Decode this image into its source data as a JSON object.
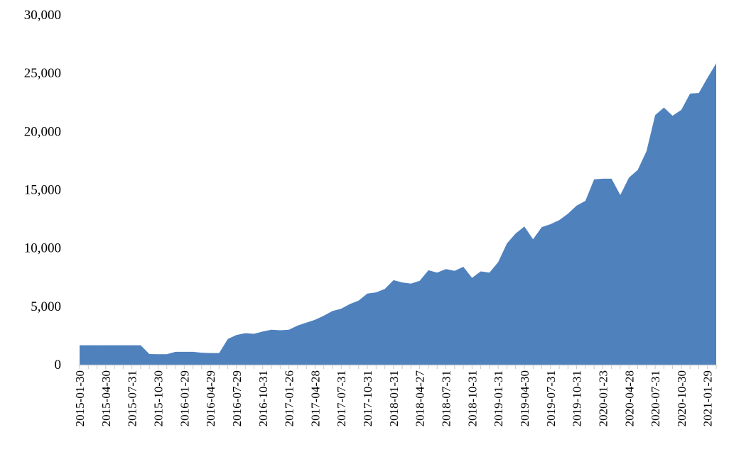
{
  "chart_data": {
    "type": "area",
    "title": "",
    "xlabel": "",
    "ylabel": "",
    "ylim": [
      0,
      30000
    ],
    "yticks": [
      "0",
      "5,000",
      "10,000",
      "15,000",
      "20,000",
      "25,000",
      "30,000"
    ],
    "ytick_values": [
      0,
      5000,
      10000,
      15000,
      20000,
      25000,
      30000
    ],
    "grid": false,
    "legend": "none",
    "color": "#4f81bd",
    "x": [
      "2015-01",
      "2015-02",
      "2015-03",
      "2015-04",
      "2015-05",
      "2015-06",
      "2015-07",
      "2015-08",
      "2015-09",
      "2015-10",
      "2015-11",
      "2015-12",
      "2016-01",
      "2016-02",
      "2016-03",
      "2016-04",
      "2016-05",
      "2016-06",
      "2016-07",
      "2016-08",
      "2016-09",
      "2016-10",
      "2016-11",
      "2016-12",
      "2017-01",
      "2017-02",
      "2017-03",
      "2017-04",
      "2017-05",
      "2017-06",
      "2017-07",
      "2017-08",
      "2017-09",
      "2017-10",
      "2017-11",
      "2017-12",
      "2018-01",
      "2018-02",
      "2018-03",
      "2018-04",
      "2018-05",
      "2018-06",
      "2018-07",
      "2018-08",
      "2018-09",
      "2018-10",
      "2018-11",
      "2018-12",
      "2019-01",
      "2019-02",
      "2019-03",
      "2019-04",
      "2019-05",
      "2019-06",
      "2019-07",
      "2019-08",
      "2019-09",
      "2019-10",
      "2019-11",
      "2019-12",
      "2020-01",
      "2020-02",
      "2020-03",
      "2020-04",
      "2020-05",
      "2020-06",
      "2020-07",
      "2020-08",
      "2020-09",
      "2020-10",
      "2020-11",
      "2020-12",
      "2021-01",
      "2021-02"
    ],
    "values": [
      1670,
      1670,
      1670,
      1670,
      1670,
      1670,
      1670,
      1670,
      910,
      900,
      900,
      1100,
      1100,
      1100,
      1030,
      1000,
      1000,
      2200,
      2550,
      2700,
      2650,
      2850,
      3000,
      2950,
      3000,
      3350,
      3600,
      3850,
      4200,
      4600,
      4800,
      5200,
      5500,
      6100,
      6200,
      6500,
      7250,
      7050,
      6950,
      7200,
      8100,
      7900,
      8200,
      8050,
      8400,
      7450,
      8000,
      7900,
      8800,
      10400,
      11250,
      11850,
      10750,
      11800,
      12050,
      12400,
      12950,
      13650,
      14050,
      15900,
      15950,
      15950,
      14550,
      16050,
      16700,
      18300,
      21400,
      22050,
      21350,
      21850,
      23250,
      23300,
      24600,
      25850
    ],
    "xtick_labels": [
      "2015-01-30",
      "2015-04-30",
      "2015-07-31",
      "2015-10-30",
      "2016-01-29",
      "2016-04-29",
      "2016-07-29",
      "2016-10-31",
      "2017-01-26",
      "2017-04-28",
      "2017-07-31",
      "2017-10-31",
      "2018-01-31",
      "2018-04-27",
      "2018-07-31",
      "2018-10-31",
      "2019-01-31",
      "2019-04-30",
      "2019-07-31",
      "2019-10-31",
      "2020-01-23",
      "2020-04-28",
      "2020-07-31",
      "2020-10-30",
      "2021-01-29"
    ],
    "xtick_every": 3
  }
}
